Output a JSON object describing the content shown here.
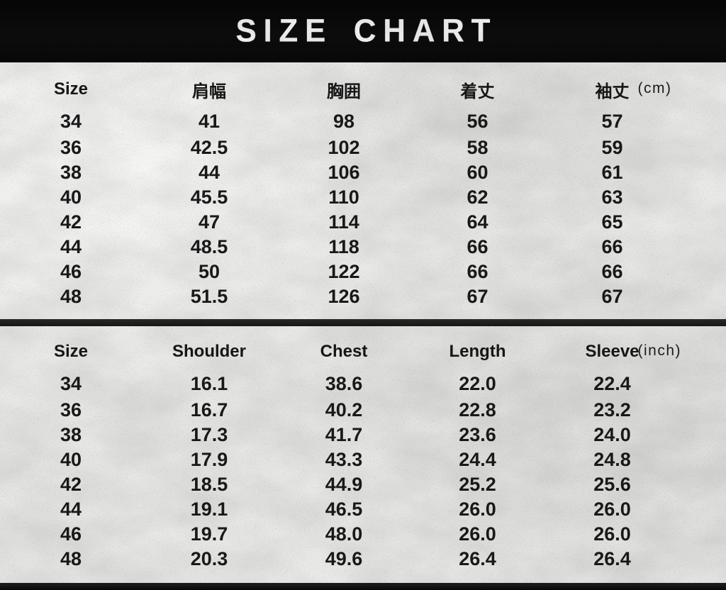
{
  "title": "SIZE CHART",
  "colors": {
    "bar_black": "#0b0b0b",
    "divider_black": "#1c1c1c",
    "background": "#e8e8e6",
    "text": "#141414",
    "title_text": "#f2f2f2"
  },
  "tables": {
    "cm": {
      "headers": [
        "Size",
        "肩幅",
        "胸囲",
        "着丈",
        "袖丈"
      ],
      "unit_label": "(cm)",
      "rows": [
        [
          "34",
          "41",
          "98",
          "56",
          "57"
        ],
        [
          "36",
          "42.5",
          "102",
          "58",
          "59"
        ],
        [
          "38",
          "44",
          "106",
          "60",
          "61"
        ],
        [
          "40",
          "45.5",
          "110",
          "62",
          "63"
        ],
        [
          "42",
          "47",
          "114",
          "64",
          "65"
        ],
        [
          "44",
          "48.5",
          "118",
          "66",
          "66"
        ],
        [
          "46",
          "50",
          "122",
          "66",
          "66"
        ],
        [
          "48",
          "51.5",
          "126",
          "67",
          "67"
        ]
      ]
    },
    "inch": {
      "headers": [
        "Size",
        "Shoulder",
        "Chest",
        "Length",
        "Sleeve"
      ],
      "unit_label": "(inch)",
      "rows": [
        [
          "34",
          "16.1",
          "38.6",
          "22.0",
          "22.4"
        ],
        [
          "36",
          "16.7",
          "40.2",
          "22.8",
          "23.2"
        ],
        [
          "38",
          "17.3",
          "41.7",
          "23.6",
          "24.0"
        ],
        [
          "40",
          "17.9",
          "43.3",
          "24.4",
          "24.8"
        ],
        [
          "42",
          "18.5",
          "44.9",
          "25.2",
          "25.6"
        ],
        [
          "44",
          "19.1",
          "46.5",
          "26.0",
          "26.0"
        ],
        [
          "46",
          "19.7",
          "48.0",
          "26.0",
          "26.0"
        ],
        [
          "48",
          "20.3",
          "49.6",
          "26.4",
          "26.4"
        ]
      ]
    }
  },
  "chart_data": [
    {
      "type": "table",
      "title": "SIZE CHART",
      "unit": "cm",
      "columns": [
        "Size",
        "肩幅",
        "胸囲",
        "着丈",
        "袖丈"
      ],
      "rows": [
        [
          34,
          41,
          98,
          56,
          57
        ],
        [
          36,
          42.5,
          102,
          58,
          59
        ],
        [
          38,
          44,
          106,
          60,
          61
        ],
        [
          40,
          45.5,
          110,
          62,
          63
        ],
        [
          42,
          47,
          114,
          64,
          65
        ],
        [
          44,
          48.5,
          118,
          66,
          66
        ],
        [
          46,
          50,
          122,
          66,
          66
        ],
        [
          48,
          51.5,
          126,
          67,
          67
        ]
      ]
    },
    {
      "type": "table",
      "title": "SIZE CHART",
      "unit": "inch",
      "columns": [
        "Size",
        "Shoulder",
        "Chest",
        "Length",
        "Sleeve"
      ],
      "rows": [
        [
          34,
          16.1,
          38.6,
          22.0,
          22.4
        ],
        [
          36,
          16.7,
          40.2,
          22.8,
          23.2
        ],
        [
          38,
          17.3,
          41.7,
          23.6,
          24.0
        ],
        [
          40,
          17.9,
          43.3,
          24.4,
          24.8
        ],
        [
          42,
          18.5,
          44.9,
          25.2,
          25.6
        ],
        [
          44,
          19.1,
          46.5,
          26.0,
          26.0
        ],
        [
          46,
          19.7,
          48.0,
          26.0,
          26.0
        ],
        [
          48,
          20.3,
          49.6,
          26.4,
          26.4
        ]
      ]
    }
  ]
}
